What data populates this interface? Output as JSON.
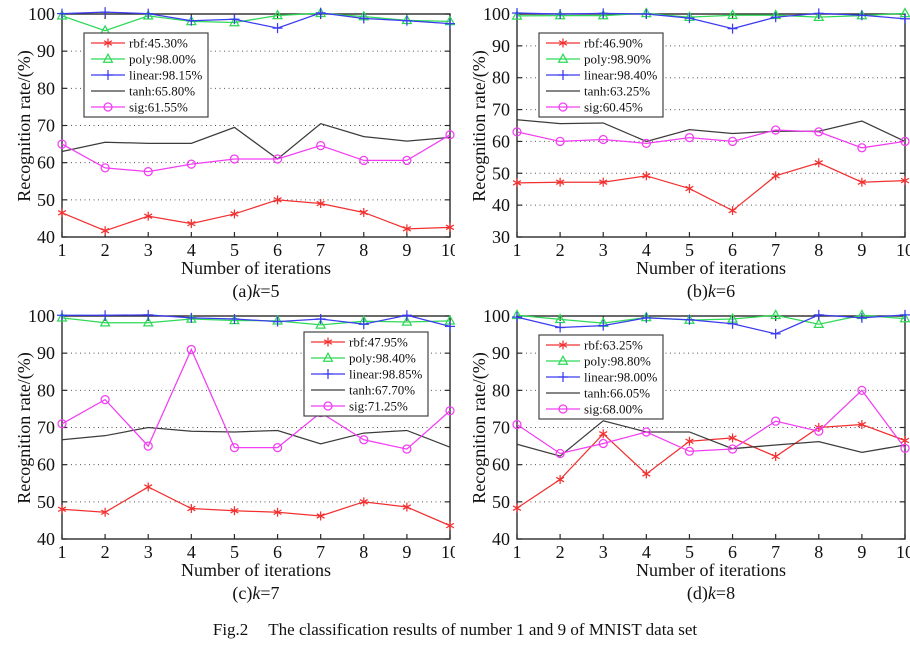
{
  "caption": {
    "label": "Fig.2",
    "text": "The classification results of number 1 and 9 of MNIST data set"
  },
  "colors": {
    "rbf": "#f23030",
    "poly": "#2ed957",
    "linear": "#3b3bf0",
    "tanh": "#3c3c3c",
    "sig": "#f23df2",
    "axis": "#2a2a2a",
    "grid": "#555555"
  },
  "markers": {
    "rbf": "asterisk",
    "poly": "triangle",
    "linear": "plus",
    "tanh": "none",
    "sig": "circle"
  },
  "chart_data": [
    {
      "id": "a",
      "type": "line",
      "caption_prefix": "(a)",
      "caption_k": "k",
      "caption_suffix": "=5",
      "xlabel": "Number of iterations",
      "ylabel": "Recognition rate/(%)",
      "x": [
        1,
        2,
        3,
        4,
        5,
        6,
        7,
        8,
        9,
        10
      ],
      "ylim": [
        40,
        100
      ],
      "yticks": [
        40,
        50,
        60,
        70,
        80,
        90,
        100
      ],
      "grid": "dotted-horizontal",
      "legend_position": "top-left",
      "series": [
        {
          "key": "rbf",
          "name": "rbf:45.30%",
          "values": [
            46.5,
            41.7,
            45.6,
            43.6,
            46.2,
            50.0,
            49.0,
            46.6,
            42.2,
            42.6
          ]
        },
        {
          "key": "poly",
          "name": "poly:98.00%",
          "values": [
            99.5,
            95.5,
            99.5,
            98.0,
            97.7,
            99.6,
            100.2,
            99.3,
            98.3,
            98.0
          ]
        },
        {
          "key": "linear",
          "name": "linear:98.15%",
          "values": [
            100.1,
            100.5,
            100.1,
            98.2,
            98.6,
            96.2,
            100.3,
            98.8,
            98.2,
            97.4
          ]
        },
        {
          "key": "tanh",
          "name": "tanh:65.80%",
          "values": [
            63.0,
            65.5,
            65.2,
            65.2,
            69.5,
            61.0,
            70.5,
            67.0,
            65.8,
            66.8
          ]
        },
        {
          "key": "sig",
          "name": "sig:61.55%",
          "values": [
            65.0,
            58.6,
            57.6,
            59.6,
            61.0,
            61.0,
            64.6,
            60.6,
            60.6,
            67.5
          ]
        }
      ]
    },
    {
      "id": "b",
      "type": "line",
      "caption_prefix": "(b)",
      "caption_k": "k",
      "caption_suffix": "=6",
      "xlabel": "Number of iterations",
      "ylabel": "Recognition rate/(%)",
      "x": [
        1,
        2,
        3,
        4,
        5,
        6,
        7,
        8,
        9,
        10
      ],
      "ylim": [
        30,
        100
      ],
      "yticks": [
        30,
        40,
        50,
        60,
        70,
        80,
        90,
        100
      ],
      "grid": "dotted-horizontal",
      "legend_position": "top-left",
      "series": [
        {
          "key": "rbf",
          "name": "rbf:46.90%",
          "values": [
            47.0,
            47.2,
            47.2,
            49.2,
            45.2,
            38.3,
            49.2,
            53.3,
            47.2,
            47.7
          ]
        },
        {
          "key": "poly",
          "name": "poly:98.90%",
          "values": [
            99.4,
            99.5,
            99.5,
            100.2,
            99.0,
            99.6,
            99.6,
            99.0,
            99.5,
            100.2
          ]
        },
        {
          "key": "linear",
          "name": "linear:98.40%",
          "values": [
            100.3,
            100.0,
            100.2,
            100.0,
            98.7,
            95.4,
            99.0,
            100.2,
            99.6,
            98.5
          ]
        },
        {
          "key": "tanh",
          "name": "tanh:63.25%",
          "values": [
            66.8,
            65.6,
            65.8,
            60.0,
            63.7,
            62.5,
            63.2,
            63.2,
            66.4,
            60.0
          ]
        },
        {
          "key": "sig",
          "name": "sig:60.45%",
          "values": [
            63.0,
            60.0,
            60.6,
            59.4,
            61.2,
            60.0,
            63.6,
            63.0,
            58.0,
            60.0
          ]
        }
      ]
    },
    {
      "id": "c",
      "type": "line",
      "caption_prefix": "(c)",
      "caption_k": "k",
      "caption_suffix": "=7",
      "xlabel": "Number of iterations",
      "ylabel": "Recognition rate/(%)",
      "x": [
        1,
        2,
        3,
        4,
        5,
        6,
        7,
        8,
        9,
        10
      ],
      "ylim": [
        40,
        100
      ],
      "yticks": [
        40,
        50,
        60,
        70,
        80,
        90,
        100
      ],
      "grid": "dotted-horizontal",
      "legend_position": "top-right",
      "series": [
        {
          "key": "rbf",
          "name": "rbf:47.95%",
          "values": [
            48.0,
            47.2,
            54.0,
            48.2,
            47.6,
            47.2,
            46.2,
            50.0,
            48.6,
            43.6
          ]
        },
        {
          "key": "poly",
          "name": "poly:98.40%",
          "values": [
            99.5,
            98.2,
            98.2,
            99.2,
            98.8,
            98.7,
            97.6,
            98.6,
            98.4,
            98.7
          ]
        },
        {
          "key": "linear",
          "name": "linear:98.85%",
          "values": [
            100.2,
            100.2,
            100.3,
            99.5,
            99.2,
            98.5,
            99.2,
            97.8,
            100.2,
            97.2
          ]
        },
        {
          "key": "tanh",
          "name": "tanh:67.70%",
          "values": [
            66.7,
            67.8,
            70.0,
            69.0,
            68.8,
            69.2,
            65.6,
            68.5,
            69.2,
            64.7
          ]
        },
        {
          "key": "sig",
          "name": "sig:71.25%",
          "values": [
            71.0,
            77.5,
            65.0,
            91.0,
            64.6,
            64.6,
            74.0,
            66.7,
            64.2,
            74.5
          ]
        }
      ]
    },
    {
      "id": "d",
      "type": "line",
      "caption_prefix": "(d)",
      "caption_k": "k",
      "caption_suffix": "=8",
      "xlabel": "Number of iterations",
      "ylabel": "Recognition rate/(%)",
      "x": [
        1,
        2,
        3,
        4,
        5,
        6,
        7,
        8,
        9,
        10
      ],
      "ylim": [
        40,
        100
      ],
      "yticks": [
        40,
        50,
        60,
        70,
        80,
        90,
        100
      ],
      "grid": "dotted-horizontal",
      "legend_position": "top-left",
      "series": [
        {
          "key": "rbf",
          "name": "rbf:63.25%",
          "values": [
            48.3,
            56.0,
            68.3,
            57.5,
            66.3,
            67.2,
            62.2,
            70.0,
            70.8,
            66.5
          ]
        },
        {
          "key": "poly",
          "name": "poly:98.80%",
          "values": [
            100.2,
            99.1,
            98.1,
            99.6,
            98.9,
            99.2,
            100.2,
            97.8,
            100.2,
            99.3
          ]
        },
        {
          "key": "linear",
          "name": "linear:98.00%",
          "values": [
            99.7,
            96.9,
            97.4,
            99.5,
            99.0,
            97.9,
            95.2,
            100.3,
            99.5,
            100.3
          ]
        },
        {
          "key": "tanh",
          "name": "tanh:66.05%",
          "values": [
            65.5,
            62.3,
            71.8,
            68.8,
            68.8,
            64.3,
            65.3,
            66.2,
            63.3,
            65.3
          ]
        },
        {
          "key": "sig",
          "name": "sig:68.00%",
          "values": [
            70.8,
            63.0,
            65.7,
            68.8,
            63.6,
            64.2,
            71.7,
            69.0,
            80.0,
            64.4
          ]
        }
      ]
    }
  ]
}
